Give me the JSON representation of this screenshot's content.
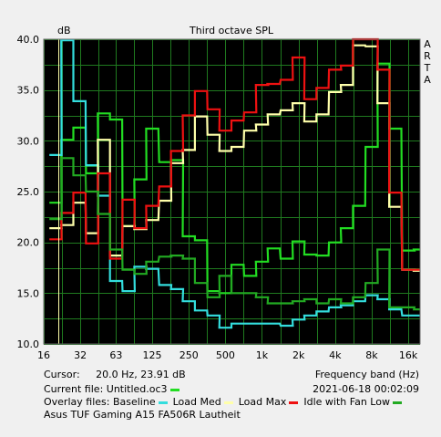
{
  "chart_data": {
    "type": "line",
    "title": "Third octave SPL",
    "ylabel": "dB",
    "xlabel": "Frequency band (Hz)",
    "side_label": [
      "A",
      "R",
      "T",
      "A"
    ],
    "x_scale": "log",
    "xlim": [
      16,
      20000
    ],
    "ylim": [
      10,
      40
    ],
    "grid": true,
    "background": "#000000",
    "grid_color": "#1f7a1f",
    "x_ticks": [
      {
        "v": 16,
        "label": "16"
      },
      {
        "v": 32,
        "label": "32"
      },
      {
        "v": 63,
        "label": "63"
      },
      {
        "v": 125,
        "label": "125"
      },
      {
        "v": 250,
        "label": "250"
      },
      {
        "v": 500,
        "label": "500"
      },
      {
        "v": 1000,
        "label": "1k"
      },
      {
        "v": 2000,
        "label": "2k"
      },
      {
        "v": 4000,
        "label": "4k"
      },
      {
        "v": 8000,
        "label": "8k"
      },
      {
        "v": 16000,
        "label": "16k"
      }
    ],
    "y_ticks": [
      {
        "v": 10,
        "label": "10.0"
      },
      {
        "v": 15,
        "label": "15.0"
      },
      {
        "v": 20,
        "label": "20.0"
      },
      {
        "v": 25,
        "label": "25.0"
      },
      {
        "v": 30,
        "label": "30.0"
      },
      {
        "v": 35,
        "label": "35.0"
      },
      {
        "v": 40,
        "label": "40.0"
      }
    ],
    "bands": [
      20,
      25,
      31.5,
      40,
      50,
      63,
      80,
      100,
      125,
      160,
      200,
      250,
      315,
      400,
      500,
      630,
      800,
      1000,
      1250,
      1600,
      2000,
      2500,
      3150,
      4000,
      5000,
      6300,
      8000,
      10000,
      12500,
      16000,
      20000
    ],
    "series": [
      {
        "name": "Current file",
        "color": "#22dd22",
        "values": [
          23.9,
          30.1,
          31.3,
          26.8,
          32.7,
          32.1,
          21.6,
          26.2,
          31.2,
          27.9,
          28.1,
          20.6,
          20.2,
          15.2,
          15.0,
          17.8,
          16.7,
          18.1,
          19.4,
          18.4,
          20.1,
          18.8,
          18.7,
          20.0,
          21.4,
          23.6,
          29.4,
          37.6,
          31.2,
          19.2,
          19.3
        ]
      },
      {
        "name": "Baseline",
        "color": "#33dddd",
        "values": [
          28.6,
          39.9,
          33.9,
          27.6,
          24.6,
          16.2,
          15.2,
          17.6,
          17.4,
          15.8,
          15.4,
          14.2,
          13.3,
          12.8,
          11.6,
          12.0,
          12.0,
          12.0,
          12.0,
          11.8,
          12.4,
          12.8,
          13.2,
          13.6,
          13.8,
          14.2,
          14.8,
          14.4,
          13.4,
          12.8,
          12.8
        ]
      },
      {
        "name": "Load Med",
        "color": "#ffffaa",
        "values": [
          21.4,
          21.7,
          23.9,
          20.9,
          30.1,
          18.7,
          21.6,
          21.3,
          22.2,
          24.1,
          27.8,
          29.1,
          32.4,
          30.6,
          29.0,
          29.4,
          31.0,
          31.6,
          32.6,
          33.0,
          33.7,
          31.9,
          32.6,
          34.8,
          35.5,
          39.4,
          39.3,
          33.7,
          23.5,
          17.3,
          17.2
        ]
      },
      {
        "name": "Load Max",
        "color": "#ee1111",
        "values": [
          20.3,
          22.9,
          24.9,
          19.9,
          26.8,
          18.4,
          24.2,
          21.4,
          23.6,
          25.5,
          29.0,
          32.5,
          34.9,
          33.1,
          31.0,
          32.0,
          32.8,
          35.5,
          35.6,
          36.0,
          38.2,
          34.1,
          35.2,
          37.0,
          37.4,
          40.0,
          40.0,
          37.0,
          24.9,
          17.3,
          17.3
        ]
      },
      {
        "name": "Idle with Fan Low",
        "color": "#22aa22",
        "values": [
          22.3,
          28.3,
          26.6,
          25.0,
          22.8,
          19.3,
          17.3,
          16.9,
          18.1,
          18.6,
          18.7,
          18.4,
          16.0,
          14.6,
          16.7,
          15.0,
          15.0,
          14.6,
          14.0,
          14.0,
          14.2,
          14.4,
          14.0,
          14.4,
          14.0,
          14.6,
          16.0,
          19.3,
          13.6,
          13.6,
          13.4
        ]
      }
    ]
  },
  "info": {
    "cursor_label": "Cursor:",
    "cursor_value": "20.0 Hz, 23.91 dB",
    "freq_band_label": "Frequency band (Hz)",
    "current_file_label": "Current file: Untitled.oc3",
    "date": "2021-06-18  00:02:09",
    "overlay_label": "Overlay files:",
    "overlays": [
      {
        "name": "Baseline",
        "color": "#33dddd"
      },
      {
        "name": "Load Med",
        "color": "#ffffaa"
      },
      {
        "name": "Load Max",
        "color": "#ee1111"
      },
      {
        "name": "Idle with Fan Low",
        "color": "#22aa22"
      }
    ],
    "current_color": "#22dd22",
    "device_name": "Asus TUF Gaming A15 FA506R Lautheit"
  }
}
